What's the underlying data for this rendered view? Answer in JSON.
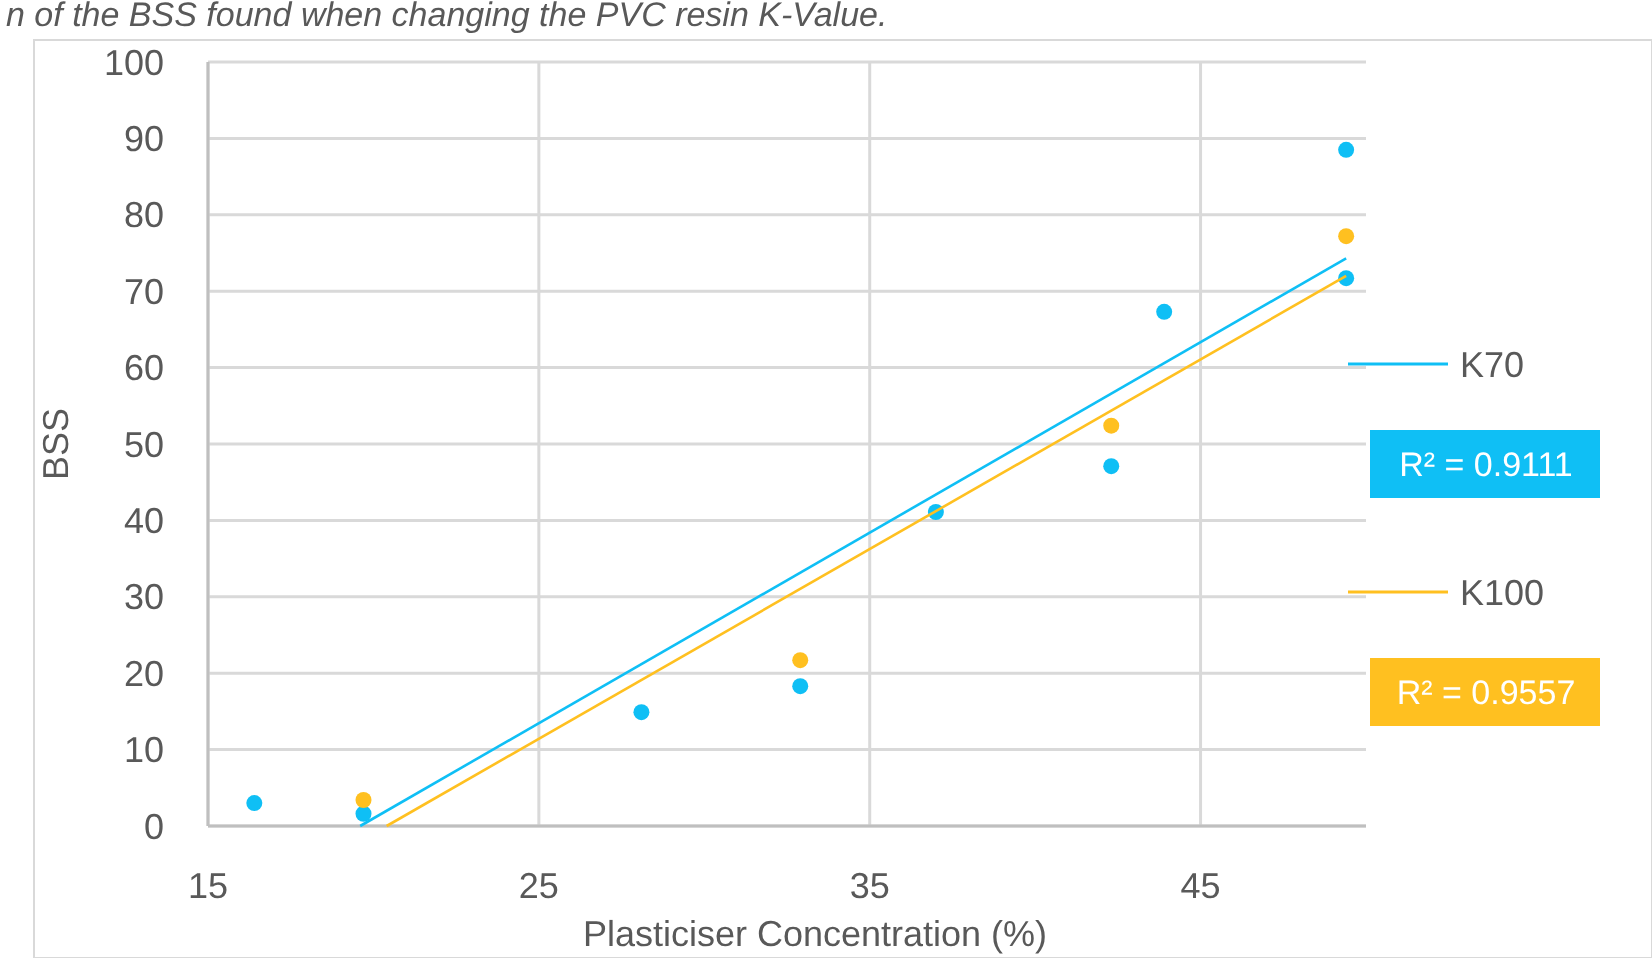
{
  "chart_data": {
    "type": "scatter",
    "title": "n of the BSS found when changing the PVC resin K-Value.",
    "xlabel": "Plasticiser Concentration (%)",
    "ylabel": "BSS",
    "xlim": [
      15,
      50
    ],
    "xticks": [
      15,
      25,
      35,
      45
    ],
    "ylim": [
      0,
      100
    ],
    "yticks": [
      0,
      10,
      20,
      30,
      40,
      50,
      60,
      70,
      80,
      90,
      100
    ],
    "grid": true,
    "legend": "right",
    "marker": "circle",
    "series": [
      {
        "color": "#0fbff5",
        "x": [
          16.4,
          19.7,
          28.1,
          32.9,
          37.0,
          42.3,
          43.9,
          49.4,
          49.4
        ],
        "values": [
          3.0,
          1.6,
          14.9,
          18.3,
          41.1,
          47.1,
          67.3,
          88.5,
          71.7
        ]
      },
      {
        "color": "#ffc020",
        "x": [
          19.7,
          32.9,
          42.3,
          49.4
        ],
        "values": [
          3.4,
          21.7,
          52.4,
          77.2
        ]
      },
      {
        "type": "line",
        "name": "K70",
        "color": "#0fbff5",
        "marker": "none",
        "x": [
          19.6,
          49.4
        ],
        "values": [
          0,
          74.3
        ]
      },
      {
        "type": "line",
        "name": "K100",
        "color": "#ffc020",
        "marker": "none",
        "x": [
          20.4,
          49.4
        ],
        "values": [
          0,
          72
        ]
      }
    ],
    "annotations": [
      "R² = 0.9111",
      "R² = 0.9557"
    ]
  }
}
